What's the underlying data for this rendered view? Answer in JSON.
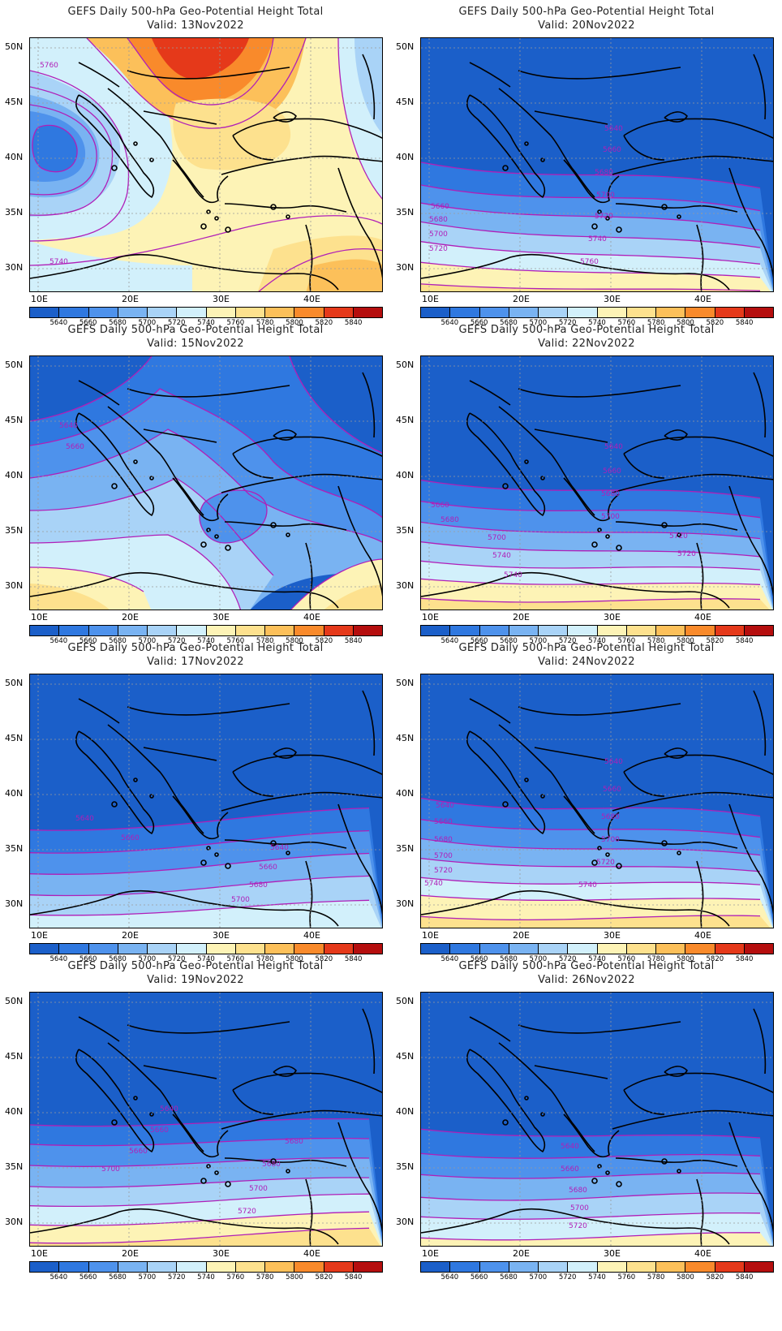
{
  "colorbar": {
    "levels": [
      "5640",
      "5660",
      "5680",
      "5700",
      "5720",
      "5740",
      "5760",
      "5780",
      "5800",
      "5820",
      "5840"
    ],
    "colors": [
      "#1b5fc9",
      "#2f78e0",
      "#4e92ec",
      "#79b3f2",
      "#a9d3f7",
      "#d2f0fb",
      "#fdf3b6",
      "#fde18e",
      "#fcc05a",
      "#f98a2b",
      "#e5391a",
      "#b50e0e"
    ]
  },
  "axes": {
    "lat_labels": [
      "50N",
      "45N",
      "40N",
      "35N",
      "30N"
    ],
    "lon_labels": [
      "10E",
      "20E",
      "30E",
      "40E"
    ]
  },
  "panels": [
    {
      "id": "p13",
      "title": "GEFS Daily 500-hPa Geo-Potential Height Total",
      "valid": "Valid:  13Nov2022",
      "scheme": "warm",
      "labels": [
        {
          "text": "5760"
        },
        {
          "text": "5740"
        }
      ]
    },
    {
      "id": "p20",
      "title": "GEFS Daily 500-hPa Geo-Potential Height Total",
      "valid": "Valid:  20Nov2022",
      "scheme": "bands_a",
      "labels": [
        {
          "text": "5640"
        },
        {
          "text": "5660"
        },
        {
          "text": "5680"
        },
        {
          "text": "5700"
        },
        {
          "text": "5660"
        },
        {
          "text": "5680"
        },
        {
          "text": "5720"
        },
        {
          "text": "5700"
        },
        {
          "text": "5720"
        },
        {
          "text": "5740"
        },
        {
          "text": "5760"
        }
      ]
    },
    {
      "id": "p15",
      "title": "GEFS Daily 500-hPa Geo-Potential Height Total",
      "valid": "Valid:  15Nov2022",
      "scheme": "trough",
      "labels": [
        {
          "text": "5640"
        },
        {
          "text": "5660"
        }
      ]
    },
    {
      "id": "p22",
      "title": "GEFS Daily 500-hPa Geo-Potential Height Total",
      "valid": "Valid:  22Nov2022",
      "scheme": "bands_b",
      "labels": [
        {
          "text": "5640"
        },
        {
          "text": "5660"
        },
        {
          "text": "5680"
        },
        {
          "text": "5700"
        },
        {
          "text": "5660"
        },
        {
          "text": "5680"
        },
        {
          "text": "5700"
        },
        {
          "text": "5720"
        },
        {
          "text": "5740"
        },
        {
          "text": "5720"
        },
        {
          "text": "5740"
        }
      ]
    },
    {
      "id": "p17",
      "title": "GEFS Daily 500-hPa Geo-Potential Height Total",
      "valid": "Valid:  17Nov2022",
      "scheme": "bands_c",
      "labels": [
        {
          "text": "5640"
        },
        {
          "text": "5660"
        },
        {
          "text": "5640"
        },
        {
          "text": "5660"
        },
        {
          "text": "5680"
        },
        {
          "text": "5700"
        }
      ]
    },
    {
      "id": "p24",
      "title": "GEFS Daily 500-hPa Geo-Potential Height Total",
      "valid": "Valid:  24Nov2022",
      "scheme": "bands_d",
      "labels": [
        {
          "text": "5640"
        },
        {
          "text": "5640"
        },
        {
          "text": "5660"
        },
        {
          "text": "5660"
        },
        {
          "text": "5680"
        },
        {
          "text": "5680"
        },
        {
          "text": "5700"
        },
        {
          "text": "5700"
        },
        {
          "text": "5720"
        },
        {
          "text": "5720"
        },
        {
          "text": "5740"
        },
        {
          "text": "5740"
        }
      ]
    },
    {
      "id": "p19",
      "title": "GEFS Daily 500-hPa Geo-Potential Height Total",
      "valid": "Valid:  19Nov2022",
      "scheme": "bands_e",
      "labels": [
        {
          "text": "5640"
        },
        {
          "text": "5660"
        },
        {
          "text": "5660"
        },
        {
          "text": "5680"
        },
        {
          "text": "5700"
        },
        {
          "text": "5680"
        },
        {
          "text": "5700"
        },
        {
          "text": "5720"
        }
      ]
    },
    {
      "id": "p26",
      "title": "GEFS Daily 500-hPa Geo-Potential Height Total",
      "valid": "Valid:  26Nov2022",
      "scheme": "bands_f",
      "labels": [
        {
          "text": "5640"
        },
        {
          "text": "5660"
        },
        {
          "text": "5680"
        },
        {
          "text": "5700"
        },
        {
          "text": "5720"
        }
      ]
    }
  ]
}
